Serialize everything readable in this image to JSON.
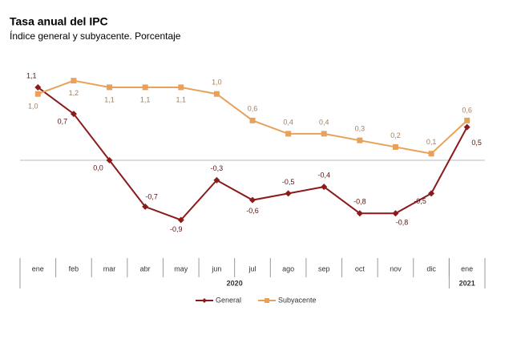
{
  "chart_data": {
    "type": "line",
    "title": "Tasa anual del IPC",
    "subtitle": "Índice general y subyacente. Porcentaje",
    "categories": [
      "ene",
      "feb",
      "mar",
      "abr",
      "may",
      "jun",
      "jul",
      "ago",
      "sep",
      "oct",
      "nov",
      "dic",
      "ene"
    ],
    "category_groups": [
      {
        "label": "2020",
        "size": 12
      },
      {
        "label": "2021",
        "size": 1
      }
    ],
    "series": [
      {
        "name": "General",
        "color": "#8b1a1a",
        "marker": "diamond",
        "values": [
          1.1,
          0.7,
          0.0,
          -0.7,
          -0.9,
          -0.3,
          -0.6,
          -0.5,
          -0.4,
          -0.8,
          -0.8,
          -0.5,
          0.5
        ],
        "value_labels": [
          "1,1",
          "0,7",
          "0,0",
          "-0,7",
          "-0,9",
          "-0,3",
          "-0,6",
          "-0,5",
          "-0,4",
          "-0,8",
          "-0,8",
          "-0,5",
          "0,5"
        ]
      },
      {
        "name": "Subyacente",
        "color": "#e8a15a",
        "marker": "square",
        "values": [
          1.0,
          1.2,
          1.1,
          1.1,
          1.1,
          1.0,
          0.6,
          0.4,
          0.4,
          0.3,
          0.2,
          0.1,
          0.6
        ],
        "value_labels": [
          "1,0",
          "1,2",
          "1,1",
          "1,1",
          "1,1",
          "1,0",
          "0,6",
          "0,4",
          "0,4",
          "0,3",
          "0,2",
          "0,1",
          "0,6"
        ]
      }
    ],
    "ylim": [
      -1.45,
      1.45
    ],
    "legend": "bottom"
  }
}
